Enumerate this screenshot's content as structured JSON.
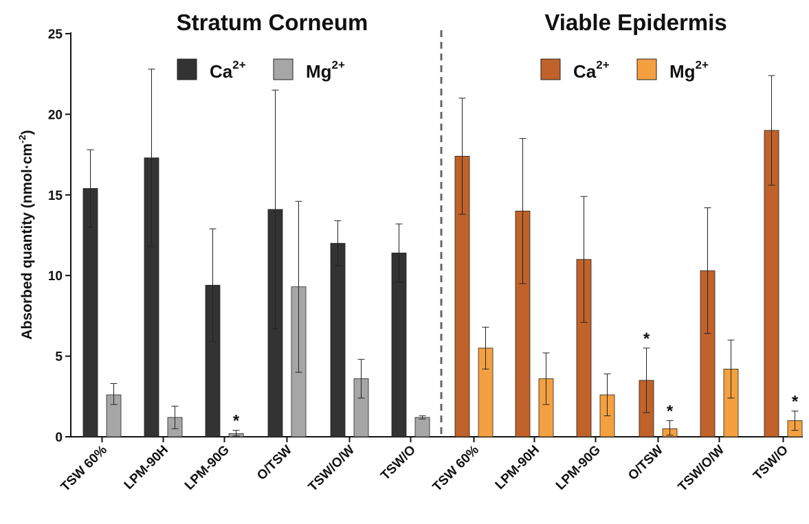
{
  "chart_data": {
    "type": "bar",
    "ylabel": "Absorbed quantity (nmol·cm",
    "ylabel_sup": "-2",
    "ylabel_close": ")",
    "ylim": [
      0,
      25
    ],
    "yticks": [
      0,
      5,
      10,
      15,
      20,
      25
    ],
    "grid": false,
    "panels": [
      {
        "title": "Stratum Corneum",
        "categories": [
          "TSW 60%",
          "LPM-90H",
          "LPM-90G",
          "O/TSW",
          "TSW/O/W",
          "TSW/O"
        ],
        "series": [
          {
            "name": "Ca",
            "name_sup": "2+",
            "color": "#333333",
            "values": [
              15.4,
              17.3,
              9.4,
              14.1,
              12.0,
              11.4
            ],
            "error_low": [
              13.0,
              11.8,
              5.9,
              6.7,
              10.6,
              9.6
            ],
            "error_high": [
              17.8,
              22.8,
              12.9,
              21.5,
              13.4,
              13.2
            ],
            "significance": [
              "",
              "",
              "",
              "",
              "",
              ""
            ]
          },
          {
            "name": "Mg",
            "name_sup": "2+",
            "color": "#a6a6a6",
            "values": [
              2.6,
              1.2,
              0.2,
              9.3,
              3.6,
              1.2
            ],
            "error_low": [
              2.0,
              0.5,
              0.05,
              4.0,
              2.4,
              1.1
            ],
            "error_high": [
              3.3,
              1.9,
              0.4,
              14.6,
              4.8,
              1.3
            ],
            "significance": [
              "",
              "",
              "*",
              "",
              "",
              ""
            ]
          }
        ]
      },
      {
        "title": "Viable Epidermis",
        "categories": [
          "TSW 60%",
          "LPM-90H",
          "LPM-90G",
          "O/TSW",
          "TSW/O/W",
          "TSW/O"
        ],
        "series": [
          {
            "name": "Ca",
            "name_sup": "2+",
            "color": "#c0622a",
            "values": [
              17.4,
              14.0,
              11.0,
              3.5,
              10.3,
              19.0
            ],
            "error_low": [
              13.8,
              9.5,
              7.1,
              1.5,
              6.4,
              15.6
            ],
            "error_high": [
              21.0,
              18.5,
              14.9,
              5.5,
              14.2,
              22.4
            ],
            "significance": [
              "",
              "",
              "",
              "*",
              "",
              ""
            ]
          },
          {
            "name": "Mg",
            "name_sup": "2+",
            "color": "#f5a040",
            "values": [
              5.5,
              3.6,
              2.6,
              0.5,
              4.2,
              1.0
            ],
            "error_low": [
              4.2,
              2.0,
              1.3,
              0.1,
              2.4,
              0.4
            ],
            "error_high": [
              6.8,
              5.2,
              3.9,
              1.0,
              6.0,
              1.6
            ],
            "significance": [
              "",
              "",
              "",
              "*",
              "",
              "*"
            ]
          }
        ]
      }
    ]
  }
}
